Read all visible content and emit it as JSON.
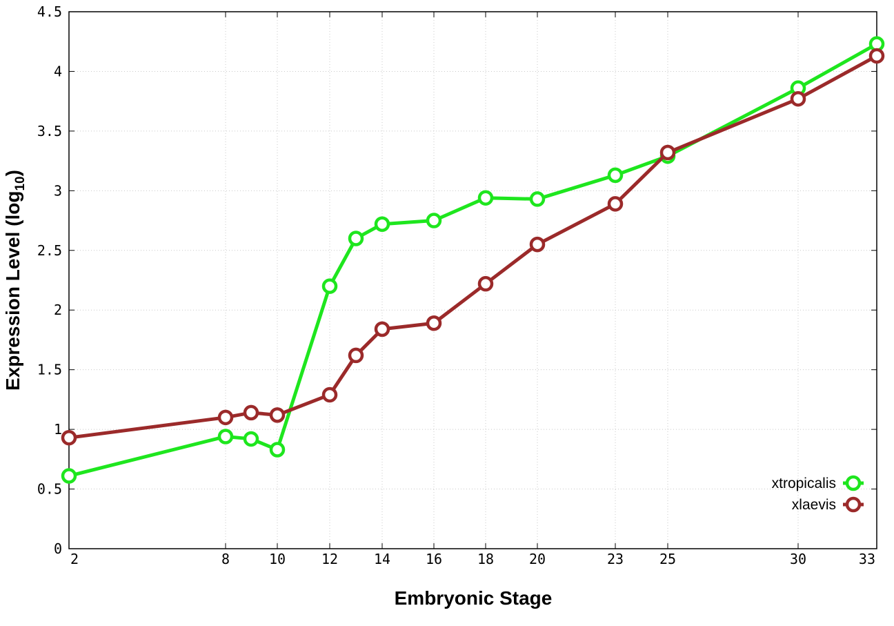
{
  "chart_data": {
    "type": "line",
    "title": "",
    "xlabel": "Embryonic Stage",
    "ylabel_main": "Expression Level (log",
    "ylabel_sub": "10",
    "ylabel_close": ")",
    "x_ticks": [
      "2",
      "8",
      "10",
      "12",
      "14",
      "16",
      "18",
      "20",
      "23",
      "25",
      "30",
      "33"
    ],
    "y_ticks": [
      "0",
      "0.5",
      "1",
      "1.5",
      "2",
      "2.5",
      "3",
      "3.5",
      "4",
      "4.5"
    ],
    "ylim": [
      0,
      4.5
    ],
    "grid": true,
    "legend_position": "bottom-right",
    "series": [
      {
        "name": "xtropicalis",
        "color": "#1ee61e",
        "points": [
          [
            2,
            0.61
          ],
          [
            8,
            0.94
          ],
          [
            9,
            0.92
          ],
          [
            10,
            0.83
          ],
          [
            12,
            2.2
          ],
          [
            13,
            2.6
          ],
          [
            14,
            2.72
          ],
          [
            16,
            2.75
          ],
          [
            18,
            2.94
          ],
          [
            20,
            2.93
          ],
          [
            23,
            3.13
          ],
          [
            25,
            3.29
          ],
          [
            30,
            3.86
          ],
          [
            33,
            4.23
          ]
        ]
      },
      {
        "name": "xlaevis",
        "color": "#9b2a2a",
        "points": [
          [
            2,
            0.93
          ],
          [
            8,
            1.1
          ],
          [
            9,
            1.14
          ],
          [
            10,
            1.12
          ],
          [
            12,
            1.29
          ],
          [
            13,
            1.62
          ],
          [
            14,
            1.84
          ],
          [
            16,
            1.89
          ],
          [
            18,
            2.22
          ],
          [
            20,
            2.55
          ],
          [
            23,
            2.89
          ],
          [
            25,
            3.32
          ],
          [
            30,
            3.77
          ],
          [
            33,
            4.13
          ]
        ]
      }
    ]
  }
}
